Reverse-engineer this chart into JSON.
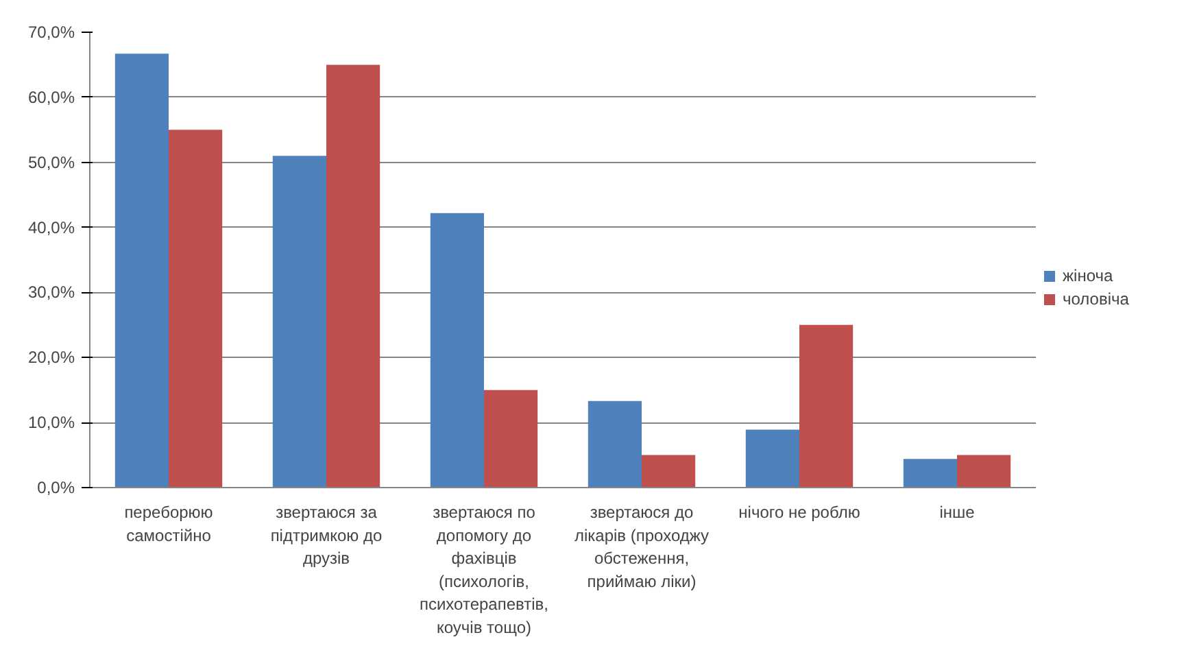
{
  "chart_data": {
    "type": "bar",
    "categories": [
      "переборюю самостійно",
      "звертаюся за підтримкою до друзів",
      "звертаюся по допомогу до фахівців (психологів, психотерапевтів, коучів тощо)",
      "звертаюся до лікарів (проходжу обстеження, приймаю ліки)",
      "нічого не роблю",
      "інше"
    ],
    "series": [
      {
        "name": "жіноча",
        "color": "#4f81bd",
        "values": [
          66.7,
          51.0,
          42.2,
          13.3,
          8.9,
          4.4
        ]
      },
      {
        "name": "чоловіча",
        "color": "#c0504d",
        "values": [
          55.0,
          65.0,
          15.0,
          5.0,
          25.0,
          5.0
        ]
      }
    ],
    "ylim": [
      0,
      70
    ],
    "yticks": [
      {
        "value": 0,
        "label": "0,0%"
      },
      {
        "value": 10,
        "label": "10,0%"
      },
      {
        "value": 20,
        "label": "20,0%"
      },
      {
        "value": 30,
        "label": "30,0%"
      },
      {
        "value": 40,
        "label": "40,0%"
      },
      {
        "value": 50,
        "label": "50,0%"
      },
      {
        "value": 60,
        "label": "60,0%"
      },
      {
        "value": 70,
        "label": "70,0%"
      }
    ],
    "grid": "y",
    "legend": "right"
  }
}
